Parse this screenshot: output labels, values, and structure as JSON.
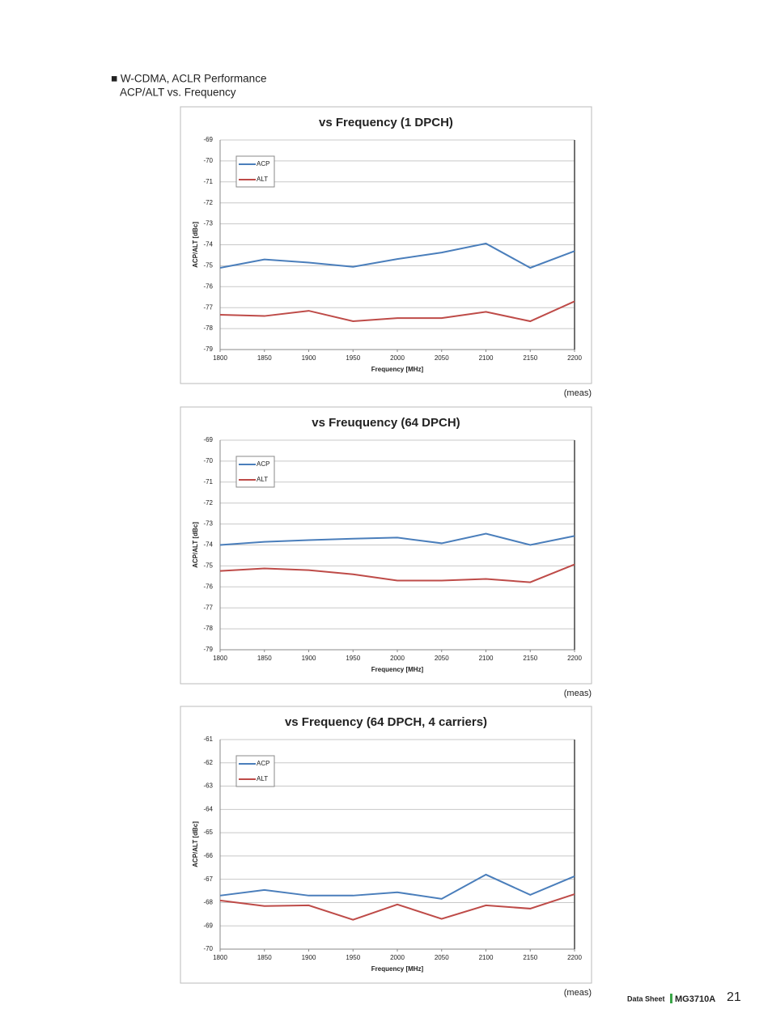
{
  "header": {
    "line1": "■ W-CDMA, ACLR Performance",
    "line2": "ACP/ALT vs. Frequency"
  },
  "chart_data": [
    {
      "type": "line",
      "title": "vs Frequency (1 DPCH)",
      "x_label": "Frequency [MHz]",
      "y_label": "ACP/ALT [dBc]",
      "note": "(meas)",
      "x": [
        1800,
        1850,
        1900,
        1950,
        2000,
        2050,
        2100,
        2150,
        2200
      ],
      "xlim": [
        1800,
        2200
      ],
      "xticks": [
        1800,
        1850,
        1900,
        1950,
        2000,
        2050,
        2100,
        2150,
        2200
      ],
      "ylim": [
        -79,
        -69
      ],
      "yticks": [
        -79,
        -78,
        -77,
        -76,
        -75,
        -74,
        -73,
        -72,
        -71,
        -70,
        -69
      ],
      "grid": true,
      "legend": "upper left",
      "series": [
        {
          "name": "ACP",
          "color": "#4a7ebb",
          "values": [
            -75.1,
            -74.7,
            -74.85,
            -75.05,
            -74.68,
            -74.37,
            -73.94,
            -75.1,
            -74.3
          ]
        },
        {
          "name": "ALT",
          "color": "#be4b48",
          "values": [
            -77.34,
            -77.4,
            -77.15,
            -77.65,
            -77.5,
            -77.5,
            -77.2,
            -77.65,
            -76.7
          ]
        }
      ]
    },
    {
      "type": "line",
      "title": "vs Freuquency (64 DPCH)",
      "x_label": "Frequency [MHz]",
      "y_label": "ACP/ALT [dBc]",
      "note": "(meas)",
      "x": [
        1800,
        1850,
        1900,
        1950,
        2000,
        2050,
        2100,
        2150,
        2200
      ],
      "xlim": [
        1800,
        2200
      ],
      "xticks": [
        1800,
        1850,
        1900,
        1950,
        2000,
        2050,
        2100,
        2150,
        2200
      ],
      "ylim": [
        -79,
        -69
      ],
      "yticks": [
        -79,
        -78,
        -77,
        -76,
        -75,
        -74,
        -73,
        -72,
        -71,
        -70,
        -69
      ],
      "grid": true,
      "legend": "upper left",
      "series": [
        {
          "name": "ACP",
          "color": "#4a7ebb",
          "values": [
            -74.0,
            -73.85,
            -73.77,
            -73.7,
            -73.65,
            -73.92,
            -73.46,
            -74.0,
            -73.57
          ]
        },
        {
          "name": "ALT",
          "color": "#be4b48",
          "values": [
            -75.24,
            -75.12,
            -75.2,
            -75.4,
            -75.7,
            -75.7,
            -75.62,
            -75.78,
            -74.93
          ]
        }
      ]
    },
    {
      "type": "line",
      "title": "vs Frequency (64 DPCH, 4 carriers)",
      "x_label": "Frequency [MHz]",
      "y_label": "ACP/ALT [dBc]",
      "note": "(meas)",
      "x": [
        1800,
        1850,
        1900,
        1950,
        2000,
        2050,
        2100,
        2150,
        2200
      ],
      "xlim": [
        1800,
        2200
      ],
      "xticks": [
        1800,
        1850,
        1900,
        1950,
        2000,
        2050,
        2100,
        2150,
        2200
      ],
      "ylim": [
        -70,
        -61
      ],
      "yticks": [
        -70,
        -69,
        -68,
        -67,
        -66,
        -65,
        -64,
        -63,
        -62,
        -61
      ],
      "grid": true,
      "legend": "upper left",
      "series": [
        {
          "name": "ACP",
          "color": "#4a7ebb",
          "values": [
            -67.7,
            -67.46,
            -67.7,
            -67.7,
            -67.56,
            -67.84,
            -66.8,
            -67.67,
            -66.87
          ]
        },
        {
          "name": "ALT",
          "color": "#be4b48",
          "values": [
            -67.91,
            -68.15,
            -68.12,
            -68.74,
            -68.08,
            -68.7,
            -68.12,
            -68.26,
            -67.64
          ]
        }
      ]
    }
  ],
  "footer": {
    "label": "Data Sheet",
    "product": "MG3710A",
    "page": "21"
  }
}
